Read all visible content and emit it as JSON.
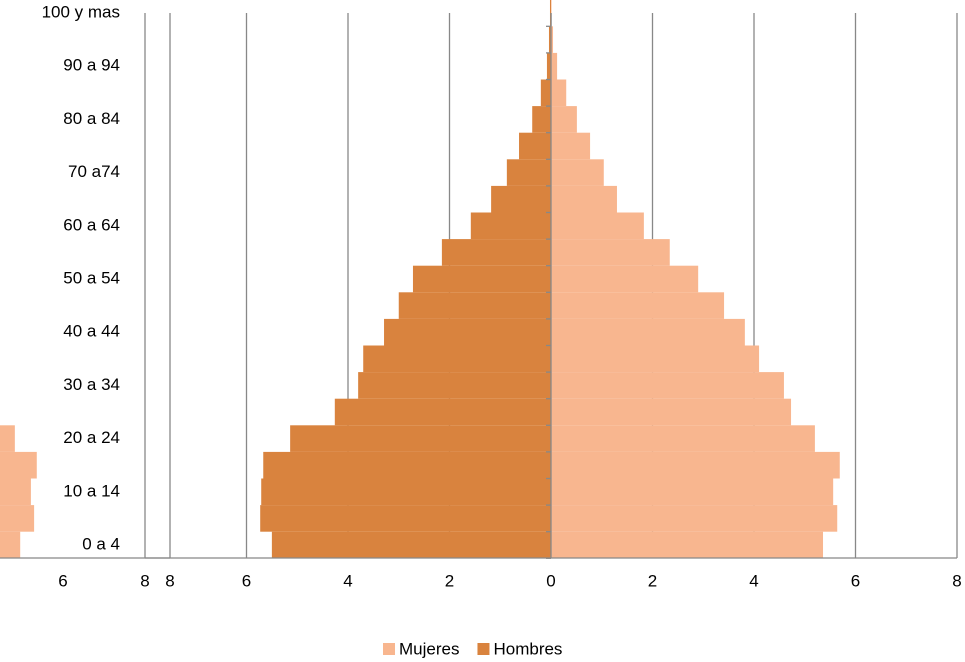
{
  "chart_data": [
    {
      "type": "bar",
      "orientation": "horizontal",
      "categories": [
        "0 a 4",
        null,
        "10 a 14",
        null,
        "20 a 24",
        null,
        "30 a 34",
        null,
        "40 a 44",
        null,
        "50 a 54",
        null,
        "60 a 64",
        null,
        "70 a74",
        null,
        "80 a 84",
        null,
        "90 a 94",
        null,
        "100 y mas"
      ],
      "series": [
        {
          "name": "Mujeres",
          "color": "#f8b68f",
          "values": [
            5.36,
            5.64,
            5.56,
            5.69,
            5.2,
            4.73,
            4.59,
            4.1,
            3.82,
            3.41,
            2.9,
            2.34,
            1.83,
            1.3,
            1.04,
            0.77,
            0.51,
            0.3,
            0.12,
            0.04,
            0.01
          ]
        },
        {
          "name": "Hombres",
          "color": "#d9833e",
          "values": [
            -5.5,
            -5.73,
            -5.71,
            -5.67,
            -5.14,
            -4.26,
            -3.8,
            -3.7,
            -3.29,
            -3.0,
            -2.72,
            -2.15,
            -1.58,
            -1.18,
            -0.87,
            -0.63,
            -0.37,
            -0.2,
            -0.08,
            -0.04,
            -0.02
          ]
        }
      ],
      "xlim": [
        -8,
        8
      ],
      "xticks": [
        {
          "value": -8,
          "label": "8"
        },
        {
          "value": -6,
          "label": "6"
        },
        {
          "value": -4,
          "label": "4"
        },
        {
          "value": -2,
          "label": "2"
        },
        0,
        2,
        4,
        6,
        8
      ],
      "grid": true,
      "legend": "bottom"
    },
    {
      "type": "bar",
      "orientation": "horizontal",
      "values": [
        5.2,
        5.46,
        5.4,
        5.51,
        5.1,
        null,
        null,
        null,
        null,
        null,
        null,
        null,
        null,
        null,
        null,
        null,
        null,
        null,
        null,
        null,
        null
      ],
      "color": "#f8b68f",
      "xlim": [
        0,
        8
      ],
      "xticks": [
        6,
        8
      ],
      "grid": false
    }
  ]
}
